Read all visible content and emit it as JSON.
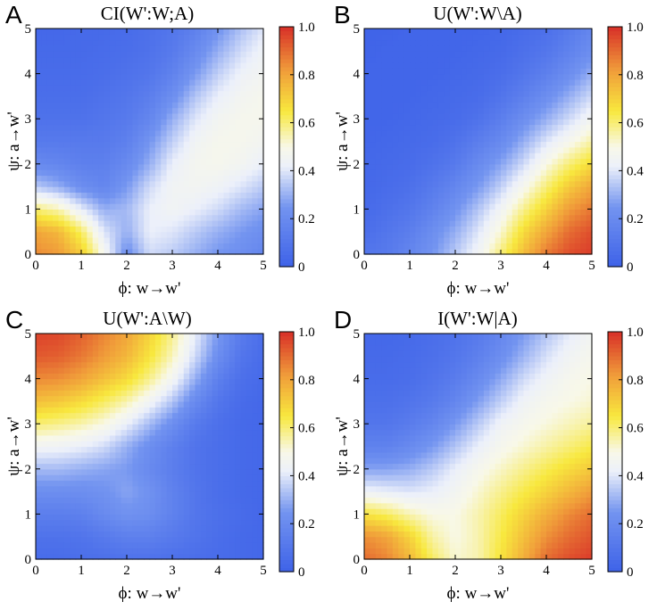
{
  "chart_data": [
    {
      "type": "heatmap",
      "panel": "A",
      "title": "CI(W':W;A)",
      "xlabel": "ϕ: w→w'",
      "ylabel": "ψ: a→w'",
      "xlim": [
        0,
        5
      ],
      "ylim": [
        0,
        5
      ],
      "xticks": [
        "0",
        "1",
        "2",
        "3",
        "4",
        "5"
      ],
      "yticks": [
        "0",
        "1",
        "2",
        "3",
        "4",
        "5"
      ],
      "colorbar": {
        "range": [
          0,
          1
        ],
        "ticks": [
          "0",
          "0.2",
          "0.4",
          "0.6",
          "0.8",
          "1.0"
        ]
      },
      "grid_step": 0.5,
      "z": [
        [
          0.85,
          0.82,
          0.72,
          0.48,
          0.22,
          0.38,
          0.35,
          0.3,
          0.25,
          0.22,
          0.18
        ],
        [
          0.8,
          0.76,
          0.62,
          0.4,
          0.3,
          0.42,
          0.4,
          0.35,
          0.3,
          0.26,
          0.22
        ],
        [
          0.6,
          0.55,
          0.42,
          0.3,
          0.32,
          0.42,
          0.45,
          0.42,
          0.38,
          0.32,
          0.28
        ],
        [
          0.35,
          0.3,
          0.22,
          0.18,
          0.26,
          0.38,
          0.45,
          0.46,
          0.44,
          0.4,
          0.35
        ],
        [
          0.2,
          0.18,
          0.15,
          0.15,
          0.2,
          0.3,
          0.42,
          0.47,
          0.48,
          0.46,
          0.42
        ],
        [
          0.12,
          0.12,
          0.12,
          0.12,
          0.15,
          0.25,
          0.36,
          0.45,
          0.48,
          0.48,
          0.46
        ],
        [
          0.08,
          0.08,
          0.08,
          0.1,
          0.12,
          0.18,
          0.3,
          0.4,
          0.46,
          0.48,
          0.48
        ],
        [
          0.06,
          0.06,
          0.06,
          0.08,
          0.1,
          0.14,
          0.22,
          0.34,
          0.42,
          0.46,
          0.48
        ],
        [
          0.05,
          0.05,
          0.05,
          0.06,
          0.08,
          0.1,
          0.16,
          0.26,
          0.36,
          0.43,
          0.46
        ],
        [
          0.04,
          0.04,
          0.04,
          0.05,
          0.06,
          0.08,
          0.12,
          0.2,
          0.3,
          0.38,
          0.44
        ],
        [
          0.03,
          0.03,
          0.04,
          0.04,
          0.05,
          0.07,
          0.1,
          0.15,
          0.24,
          0.33,
          0.4
        ]
      ]
    },
    {
      "type": "heatmap",
      "panel": "B",
      "title": "U(W':W\\A)",
      "xlabel": "ϕ: w→w'",
      "ylabel": "ψ: a→w'",
      "xlim": [
        0,
        5
      ],
      "ylim": [
        0,
        5
      ],
      "xticks": [
        "0",
        "1",
        "2",
        "3",
        "4",
        "5"
      ],
      "yticks": [
        "0",
        "1",
        "2",
        "3",
        "4",
        "5"
      ],
      "colorbar": {
        "range": [
          0,
          1
        ],
        "ticks": [
          "0",
          "0.2",
          "0.4",
          "0.6",
          "0.8",
          "1.0"
        ]
      },
      "grid_step": 0.5,
      "z": [
        [
          0.1,
          0.12,
          0.18,
          0.25,
          0.35,
          0.45,
          0.6,
          0.75,
          0.88,
          0.95,
          0.98
        ],
        [
          0.06,
          0.1,
          0.14,
          0.22,
          0.3,
          0.4,
          0.52,
          0.68,
          0.8,
          0.9,
          0.95
        ],
        [
          0.04,
          0.07,
          0.1,
          0.16,
          0.24,
          0.34,
          0.45,
          0.58,
          0.7,
          0.82,
          0.88
        ],
        [
          0.03,
          0.05,
          0.07,
          0.12,
          0.18,
          0.26,
          0.36,
          0.48,
          0.6,
          0.72,
          0.8
        ],
        [
          0.03,
          0.04,
          0.05,
          0.08,
          0.12,
          0.2,
          0.28,
          0.38,
          0.5,
          0.6,
          0.68
        ],
        [
          0.02,
          0.03,
          0.04,
          0.05,
          0.08,
          0.14,
          0.2,
          0.3,
          0.4,
          0.48,
          0.56
        ],
        [
          0.02,
          0.02,
          0.03,
          0.04,
          0.05,
          0.08,
          0.14,
          0.22,
          0.3,
          0.38,
          0.46
        ],
        [
          0.02,
          0.02,
          0.02,
          0.03,
          0.04,
          0.05,
          0.09,
          0.15,
          0.22,
          0.3,
          0.38
        ],
        [
          0.02,
          0.02,
          0.02,
          0.02,
          0.03,
          0.04,
          0.06,
          0.1,
          0.15,
          0.22,
          0.3
        ],
        [
          0.01,
          0.02,
          0.02,
          0.02,
          0.02,
          0.03,
          0.04,
          0.07,
          0.1,
          0.16,
          0.22
        ],
        [
          0.01,
          0.01,
          0.02,
          0.02,
          0.02,
          0.02,
          0.03,
          0.05,
          0.07,
          0.12,
          0.18
        ]
      ]
    },
    {
      "type": "heatmap",
      "panel": "C",
      "title": "U(W':A\\W)",
      "xlabel": "ϕ: w→w'",
      "ylabel": "ψ: a→w'",
      "xlim": [
        0,
        5
      ],
      "ylim": [
        0,
        5
      ],
      "xticks": [
        "0",
        "1",
        "2",
        "3",
        "4",
        "5"
      ],
      "yticks": [
        "0",
        "1",
        "2",
        "3",
        "4",
        "5"
      ],
      "colorbar": {
        "range": [
          0,
          1
        ],
        "ticks": [
          "0",
          "0.2",
          "0.4",
          "0.6",
          "0.8",
          "1.0"
        ]
      },
      "grid_step": 0.5,
      "z": [
        [
          0.05,
          0.05,
          0.06,
          0.07,
          0.08,
          0.08,
          0.07,
          0.06,
          0.05,
          0.04,
          0.03
        ],
        [
          0.08,
          0.08,
          0.09,
          0.12,
          0.15,
          0.15,
          0.12,
          0.09,
          0.06,
          0.04,
          0.03
        ],
        [
          0.14,
          0.14,
          0.15,
          0.2,
          0.24,
          0.22,
          0.16,
          0.1,
          0.07,
          0.05,
          0.03
        ],
        [
          0.22,
          0.22,
          0.22,
          0.24,
          0.28,
          0.24,
          0.16,
          0.1,
          0.06,
          0.04,
          0.03
        ],
        [
          0.32,
          0.32,
          0.3,
          0.28,
          0.26,
          0.2,
          0.14,
          0.09,
          0.06,
          0.04,
          0.03
        ],
        [
          0.45,
          0.44,
          0.42,
          0.38,
          0.3,
          0.22,
          0.15,
          0.09,
          0.06,
          0.04,
          0.03
        ],
        [
          0.6,
          0.58,
          0.55,
          0.5,
          0.42,
          0.32,
          0.22,
          0.12,
          0.07,
          0.04,
          0.03
        ],
        [
          0.74,
          0.72,
          0.68,
          0.62,
          0.55,
          0.45,
          0.34,
          0.2,
          0.1,
          0.05,
          0.03
        ],
        [
          0.85,
          0.84,
          0.8,
          0.74,
          0.68,
          0.58,
          0.46,
          0.3,
          0.15,
          0.07,
          0.04
        ],
        [
          0.93,
          0.92,
          0.88,
          0.82,
          0.76,
          0.66,
          0.54,
          0.38,
          0.22,
          0.1,
          0.05
        ],
        [
          0.97,
          0.96,
          0.92,
          0.86,
          0.8,
          0.7,
          0.58,
          0.42,
          0.26,
          0.13,
          0.06
        ]
      ]
    },
    {
      "type": "heatmap",
      "panel": "D",
      "title": "I(W':W|A)",
      "xlabel": "ϕ: w→w'",
      "ylabel": "ψ: a→w'",
      "xlim": [
        0,
        5
      ],
      "ylim": [
        0,
        5
      ],
      "xticks": [
        "0",
        "1",
        "2",
        "3",
        "4",
        "5"
      ],
      "yticks": [
        "0",
        "1",
        "2",
        "3",
        "4",
        "5"
      ],
      "colorbar": {
        "range": [
          0,
          1
        ],
        "ticks": [
          "0",
          "0.2",
          "0.4",
          "0.6",
          "0.8",
          "1.0"
        ]
      },
      "grid_step": 0.5,
      "z": [
        [
          0.9,
          0.86,
          0.76,
          0.62,
          0.52,
          0.55,
          0.66,
          0.78,
          0.9,
          0.95,
          0.98
        ],
        [
          0.84,
          0.8,
          0.7,
          0.56,
          0.5,
          0.55,
          0.64,
          0.74,
          0.84,
          0.9,
          0.94
        ],
        [
          0.66,
          0.62,
          0.55,
          0.5,
          0.5,
          0.55,
          0.62,
          0.7,
          0.78,
          0.85,
          0.9
        ],
        [
          0.44,
          0.42,
          0.4,
          0.42,
          0.46,
          0.52,
          0.58,
          0.64,
          0.7,
          0.76,
          0.82
        ],
        [
          0.28,
          0.28,
          0.3,
          0.35,
          0.42,
          0.48,
          0.53,
          0.58,
          0.63,
          0.68,
          0.72
        ],
        [
          0.16,
          0.16,
          0.2,
          0.26,
          0.34,
          0.42,
          0.48,
          0.52,
          0.56,
          0.6,
          0.64
        ],
        [
          0.1,
          0.1,
          0.13,
          0.18,
          0.26,
          0.35,
          0.44,
          0.48,
          0.51,
          0.54,
          0.57
        ],
        [
          0.07,
          0.07,
          0.09,
          0.12,
          0.18,
          0.27,
          0.36,
          0.44,
          0.48,
          0.5,
          0.52
        ],
        [
          0.05,
          0.05,
          0.06,
          0.09,
          0.13,
          0.2,
          0.29,
          0.38,
          0.44,
          0.48,
          0.5
        ],
        [
          0.04,
          0.04,
          0.05,
          0.07,
          0.1,
          0.15,
          0.22,
          0.31,
          0.39,
          0.45,
          0.48
        ],
        [
          0.03,
          0.03,
          0.04,
          0.06,
          0.08,
          0.12,
          0.18,
          0.26,
          0.34,
          0.41,
          0.46
        ]
      ]
    }
  ]
}
